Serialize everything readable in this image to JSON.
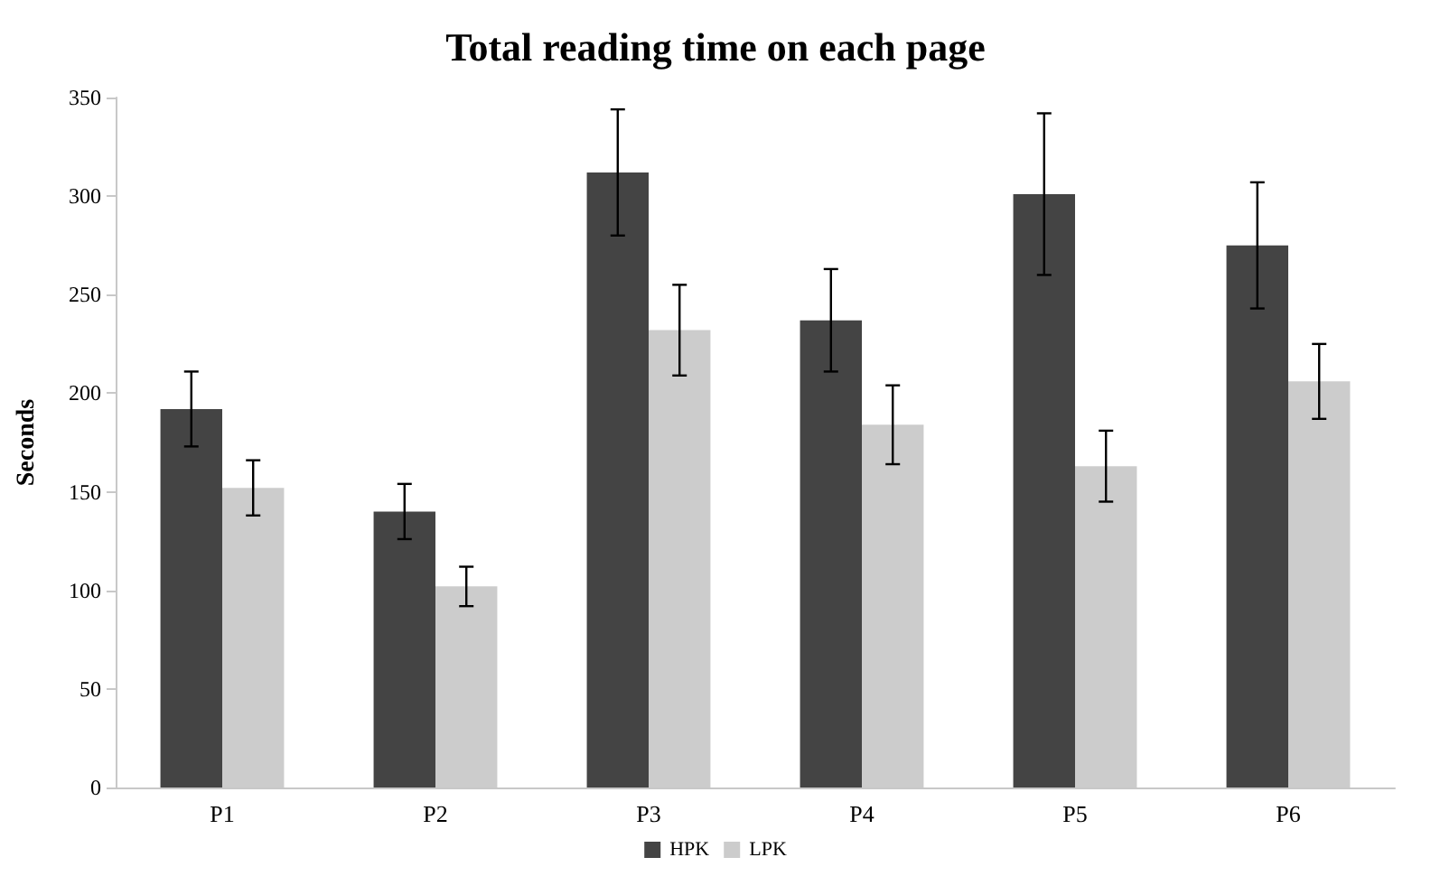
{
  "chart_data": {
    "type": "bar",
    "title": "Total reading time on each page",
    "ylabel": "Seconds",
    "categories": [
      "P1",
      "P2",
      "P3",
      "P4",
      "P5",
      "P6"
    ],
    "series": [
      {
        "name": "HPK",
        "color": "#444444",
        "values": [
          192,
          140,
          312,
          237,
          301,
          275
        ],
        "errors": [
          19,
          14,
          32,
          26,
          41,
          32
        ]
      },
      {
        "name": "LPK",
        "color": "#cccccc",
        "values": [
          152,
          102,
          232,
          184,
          163,
          206
        ],
        "errors": [
          14,
          10,
          23,
          20,
          18,
          19
        ]
      }
    ],
    "ylim": [
      0,
      350
    ],
    "yticks": [
      0,
      50,
      100,
      150,
      200,
      250,
      300,
      350
    ],
    "grid": false,
    "legend": "bottom"
  }
}
